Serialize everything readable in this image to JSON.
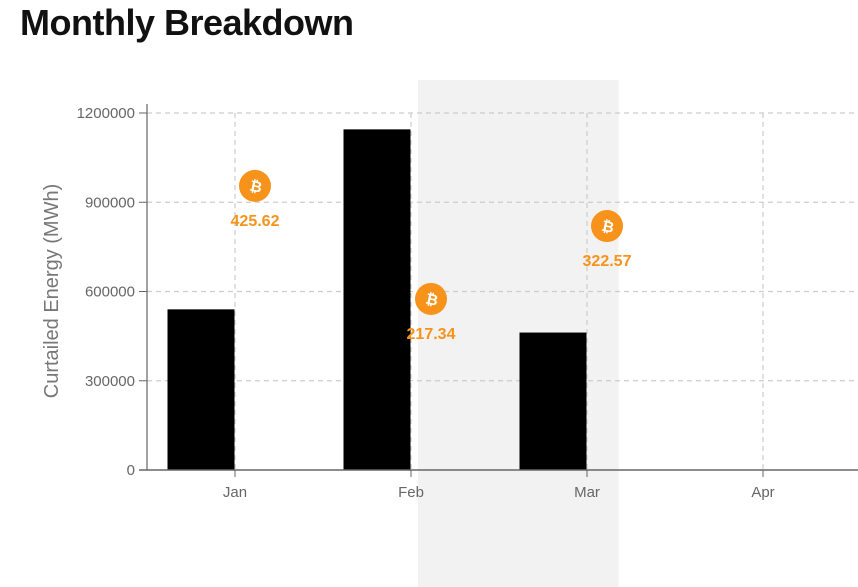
{
  "page": {
    "title": "Monthly Breakdown"
  },
  "colors": {
    "bar": "#000000",
    "accent": "#f7931a",
    "highlight": "#f2f2f2",
    "grid": "#cccccc",
    "axis": "#666666"
  },
  "chart_data": {
    "type": "bar",
    "title": "Monthly Breakdown",
    "xlabel": "",
    "ylabel": "Curtailed Energy (MWh)",
    "categories": [
      "Jan",
      "Feb",
      "Mar",
      "Apr"
    ],
    "values": [
      540000,
      1145000,
      462000,
      0
    ],
    "ylim": [
      0,
      1200000
    ],
    "yticks": [
      "0",
      "300000",
      "600000",
      "900000",
      "1200000"
    ],
    "grid": true,
    "highlight_range": [
      "Feb",
      "Mar"
    ],
    "annotations": [
      {
        "category": "Jan",
        "value": 955000,
        "label": "425.62",
        "icon": "bitcoin-icon"
      },
      {
        "category": "Feb",
        "value": 575000,
        "label": "217.34",
        "icon": "bitcoin-icon"
      },
      {
        "category": "Mar",
        "value": 820000,
        "label": "322.57",
        "icon": "bitcoin-icon"
      }
    ]
  }
}
